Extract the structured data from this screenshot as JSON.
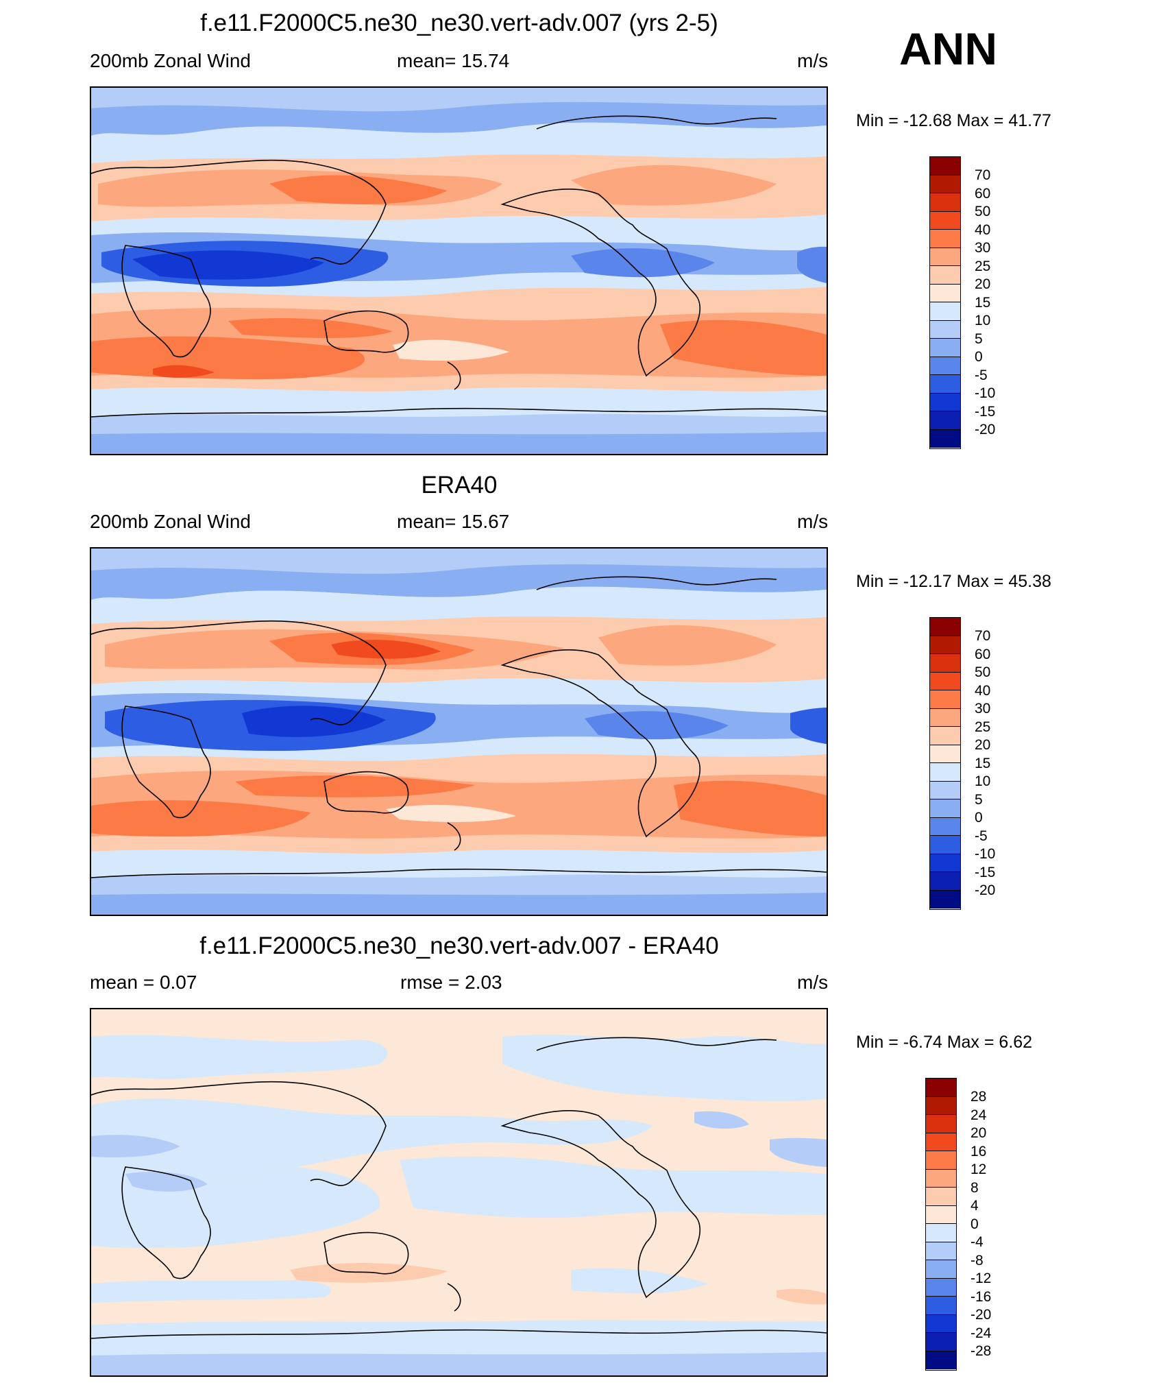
{
  "season": "ANN",
  "panels": [
    {
      "title": "f.e11.F2000C5.ne30_ne30.vert-adv.007 (yrs 2-5)",
      "left_label": "200mb Zonal Wind",
      "center_label": "mean=  15.74",
      "units": "m/s",
      "minmax": "Min = -12.68 Max =  41.77",
      "colorbar_labels": [
        "70",
        "60",
        "50",
        "40",
        "30",
        "25",
        "20",
        "15",
        "10",
        "5",
        "0",
        "-5",
        "-10",
        "-15",
        "-20"
      ]
    },
    {
      "title": "ERA40",
      "left_label": "200mb Zonal Wind",
      "center_label": "mean=  15.67",
      "units": "m/s",
      "minmax": "Min = -12.17 Max =  45.38",
      "colorbar_labels": [
        "70",
        "60",
        "50",
        "40",
        "30",
        "25",
        "20",
        "15",
        "10",
        "5",
        "0",
        "-5",
        "-10",
        "-15",
        "-20"
      ]
    },
    {
      "title": "f.e11.F2000C5.ne30_ne30.vert-adv.007 - ERA40",
      "left_label": "mean =   0.07",
      "center_label": "rmse =   2.03",
      "units": "m/s",
      "minmax": "Min =  -6.74 Max =   6.62",
      "colorbar_labels": [
        "28",
        "24",
        "20",
        "16",
        "12",
        "8",
        "4",
        "0",
        "-4",
        "-8",
        "-12",
        "-16",
        "-20",
        "-24",
        "-28"
      ]
    }
  ],
  "colors": {
    "palette": [
      "#8b0000",
      "#b01a00",
      "#d9310d",
      "#f04a1e",
      "#fb7a45",
      "#fca77e",
      "#fdcbae",
      "#fde7d6",
      "#d6e8fb",
      "#b4cdf8",
      "#8aaef2",
      "#5a86ec",
      "#2c5de3",
      "#1238d3",
      "#0b1fb0",
      "#000c84"
    ]
  }
}
